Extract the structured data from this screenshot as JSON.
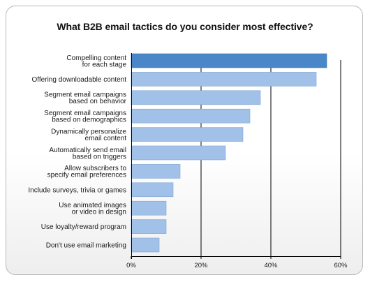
{
  "chart_data": {
    "type": "bar",
    "orientation": "horizontal",
    "title": "What B2B email tactics do you consider most effective?",
    "categories": [
      [
        "Compelling content",
        "for each stage"
      ],
      [
        "Offering downloadable content"
      ],
      [
        "Segment email campaigns",
        "based on behavior"
      ],
      [
        "Segment email campaigns",
        "based on demographics"
      ],
      [
        "Dynamically personalize",
        "email content"
      ],
      [
        "Automatically send email",
        "based on triggers"
      ],
      [
        "Allow subscribers to",
        "specify email preferences"
      ],
      [
        "Include surveys, trivia or games"
      ],
      [
        "Use animated images",
        "or video in design"
      ],
      [
        "Use loyalty/reward program"
      ],
      [
        "Don't use email marketing"
      ]
    ],
    "values": [
      56,
      53,
      37,
      34,
      32,
      27,
      14,
      12,
      10,
      10,
      8
    ],
    "highlight_index": 0,
    "xlim": [
      0,
      60
    ],
    "xticks": [
      "0%",
      "20%",
      "40%",
      "60%"
    ],
    "xtick_values": [
      0,
      20,
      40,
      60
    ],
    "grid": true,
    "colors": {
      "highlight": "#4a87c8",
      "bar": "#a2c1e9",
      "bar_edge": "#7fa3d1",
      "grid": "#000000"
    }
  }
}
